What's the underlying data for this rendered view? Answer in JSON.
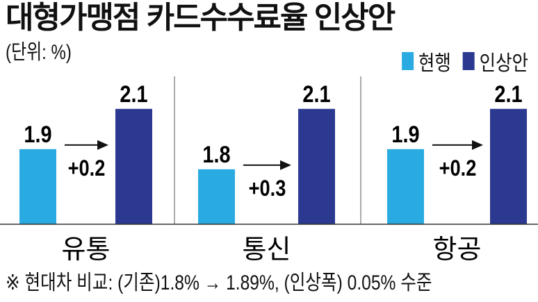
{
  "title": "대형가맹점 카드수수료율 인상안",
  "unit_label": "(단위: %)",
  "note": "※ 현대차 비교: (기존)1.8% → 1.89%, (인상폭) 0.05% 수준",
  "colors": {
    "current": "#29ABE2",
    "proposed": "#2B3990"
  },
  "chart_data": {
    "type": "bar",
    "title": "대형가맹점 카드수수료율 인상안",
    "ylabel": "(단위: %)",
    "categories": [
      "유통",
      "통신",
      "항공"
    ],
    "series": [
      {
        "name": "현행",
        "values": [
          1.9,
          1.8,
          1.9
        ]
      },
      {
        "name": "인상안",
        "values": [
          2.1,
          2.1,
          2.1
        ]
      }
    ],
    "value_labels": {
      "현행": [
        "1.9",
        "1.8",
        "1.9"
      ],
      "인상안": [
        "2.1",
        "2.1",
        "2.1"
      ]
    },
    "annotations": [
      "+0.2",
      "+0.3",
      "+0.2"
    ],
    "legend_position": "top-right",
    "grid": false
  }
}
